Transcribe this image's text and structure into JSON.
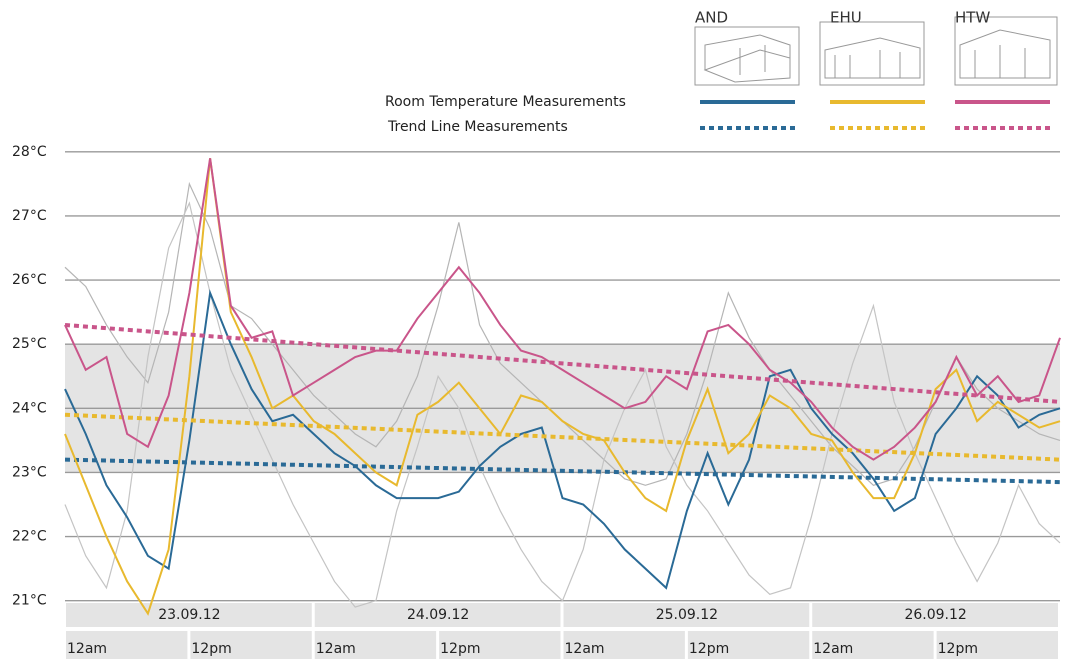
{
  "chart_data": {
    "type": "line",
    "legend_solid": "Room Temperature Measurements",
    "legend_dotted": "Trend Line Measurements",
    "x": [
      0,
      2,
      4,
      6,
      8,
      10,
      12,
      14,
      16,
      18,
      20,
      22,
      24,
      26,
      28,
      30,
      32,
      34,
      36,
      38,
      40,
      42,
      44,
      46,
      48,
      50,
      52,
      54,
      56,
      58,
      60,
      62,
      64,
      66,
      68,
      70,
      72,
      74,
      76,
      78,
      80,
      82,
      84,
      86,
      88,
      90,
      92,
      94,
      96
    ],
    "xlim": [
      0,
      96
    ],
    "dates": [
      "23.09.12",
      "24.09.12",
      "25.09.12",
      "26.09.12"
    ],
    "times": [
      "12am",
      "12pm",
      "12am",
      "12pm",
      "12am",
      "12pm",
      "12am",
      "12pm"
    ],
    "ylim": [
      20.2,
      28.2
    ],
    "yticks": [
      {
        "value": 21,
        "label": "21°C"
      },
      {
        "value": 22,
        "label": "22°C"
      },
      {
        "value": 23,
        "label": "23°C"
      },
      {
        "value": 24,
        "label": "24°C"
      },
      {
        "value": 25,
        "label": "25°C"
      },
      {
        "value": 26,
        "label": "26°C"
      },
      {
        "value": 27,
        "label": "27°C"
      },
      {
        "value": 28,
        "label": "28°C"
      }
    ],
    "grid": true,
    "comfort_band": [
      23,
      25
    ],
    "series": [
      {
        "name": "AND",
        "color": "#2a6a96",
        "values": [
          24.3,
          23.6,
          22.8,
          22.3,
          21.7,
          21.5,
          23.5,
          25.8,
          25,
          24.3,
          23.8,
          23.9,
          23.6,
          23.3,
          23.1,
          22.8,
          22.6,
          22.6,
          22.6,
          22.7,
          23.1,
          23.4,
          23.6,
          23.7,
          22.6,
          22.5,
          22.2,
          21.8,
          21.5,
          21.2,
          22.4,
          23.3,
          22.5,
          23.2,
          24.5,
          24.6,
          24.0,
          23.6,
          23.3,
          22.9,
          22.4,
          22.6,
          23.6,
          24.0,
          24.5,
          24.2,
          23.7,
          23.9,
          24.0
        ],
        "trend": [
          23.2,
          22.85
        ]
      },
      {
        "name": "EHU",
        "color": "#e8b92e",
        "values": [
          23.6,
          22.8,
          22.0,
          21.3,
          20.8,
          21.8,
          24.5,
          27.9,
          25.5,
          24.8,
          24.0,
          24.2,
          23.8,
          23.6,
          23.3,
          23.0,
          22.8,
          23.9,
          24.1,
          24.4,
          24.0,
          23.6,
          24.2,
          24.1,
          23.8,
          23.6,
          23.5,
          23.0,
          22.6,
          22.4,
          23.5,
          24.3,
          23.3,
          23.6,
          24.2,
          24.0,
          23.6,
          23.5,
          23.0,
          22.6,
          22.6,
          23.3,
          24.3,
          24.6,
          23.8,
          24.1,
          23.9,
          23.7,
          23.8
        ],
        "trend": [
          23.9,
          23.2
        ]
      },
      {
        "name": "HTW",
        "color": "#c9558a",
        "values": [
          25.3,
          24.6,
          24.8,
          23.6,
          23.4,
          24.2,
          25.8,
          27.9,
          25.6,
          25.1,
          25.2,
          24.2,
          24.4,
          24.6,
          24.8,
          24.9,
          24.9,
          25.4,
          25.8,
          26.2,
          25.8,
          25.3,
          24.9,
          24.8,
          24.6,
          24.4,
          24.2,
          24.0,
          24.1,
          24.5,
          24.3,
          25.2,
          25.3,
          25.0,
          24.6,
          24.4,
          24.1,
          23.7,
          23.4,
          23.2,
          23.4,
          23.7,
          24.1,
          24.8,
          24.2,
          24.5,
          24.1,
          24.2,
          25.1
        ],
        "trend": [
          25.3,
          24.1
        ]
      }
    ],
    "other_series": [
      {
        "color": "#b5b5b5",
        "values": [
          26.2,
          25.9,
          25.3,
          24.8,
          24.4,
          25.5,
          27.5,
          26.8,
          25.6,
          25.4,
          25.0,
          24.6,
          24.2,
          23.9,
          23.6,
          23.4,
          23.8,
          24.5,
          25.6,
          26.9,
          25.3,
          24.7,
          24.4,
          24.1,
          23.8,
          23.5,
          23.2,
          22.9,
          22.8,
          22.9,
          23.6,
          24.6,
          25.8,
          25.1,
          24.6,
          24.2,
          23.8,
          23.4,
          23.1,
          22.8,
          22.9,
          23.4,
          24.1,
          24.8,
          24.3,
          24.0,
          23.8,
          23.6,
          23.5
        ]
      },
      {
        "color": "#c4c4c4",
        "values": [
          22.5,
          21.7,
          21.2,
          22.4,
          24.8,
          26.5,
          27.2,
          25.8,
          24.6,
          23.9,
          23.2,
          22.5,
          21.9,
          21.3,
          20.9,
          21.0,
          22.4,
          23.4,
          24.5,
          24.0,
          23.1,
          22.4,
          21.8,
          21.3,
          21.0,
          21.8,
          23.2,
          24.0,
          24.6,
          23.4,
          22.8,
          22.4,
          21.9,
          21.4,
          21.1,
          21.2,
          22.3,
          23.6,
          24.7,
          25.6,
          24.1,
          23.3,
          22.6,
          21.9,
          21.3,
          21.9,
          22.8,
          22.2,
          21.9
        ]
      }
    ]
  }
}
